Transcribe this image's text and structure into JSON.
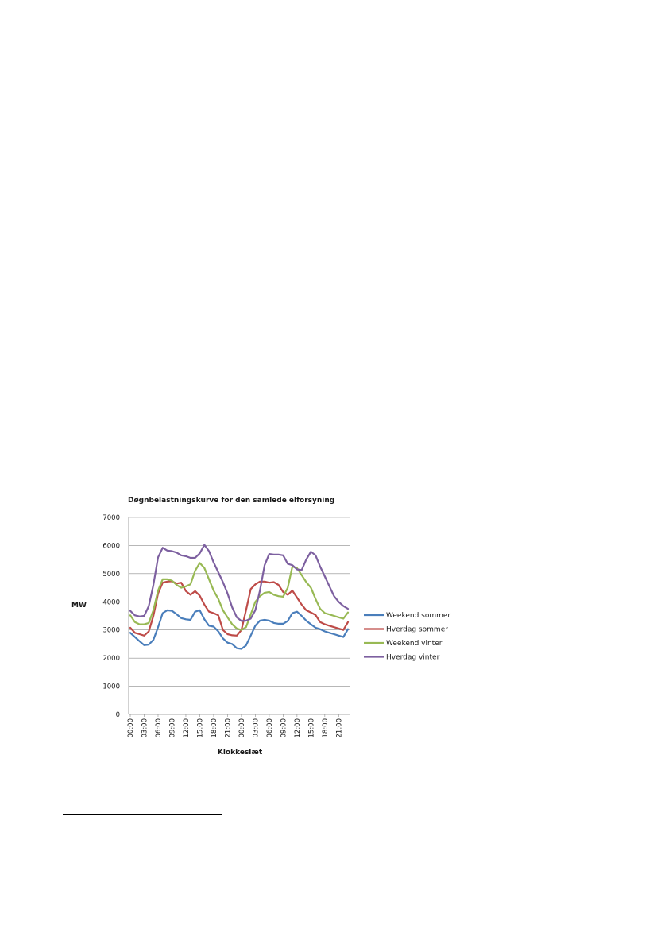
{
  "chart_data": {
    "type": "line",
    "title": "Døgnbelastningskurve for den samlede elforsyning",
    "xlabel": "Klokkeslæt",
    "ylabel": "MW",
    "ylim": [
      0,
      7000
    ],
    "yticks": [
      0,
      1000,
      2000,
      3000,
      4000,
      5000,
      6000,
      7000
    ],
    "grid": "horizontal",
    "legend_position": "right",
    "x": [
      "00:00",
      "01:00",
      "02:00",
      "03:00",
      "04:00",
      "05:00",
      "06:00",
      "07:00",
      "08:00",
      "09:00",
      "10:00",
      "11:00",
      "12:00",
      "13:00",
      "14:00",
      "15:00",
      "16:00",
      "17:00",
      "18:00",
      "19:00",
      "20:00",
      "21:00",
      "22:00",
      "23:00",
      "00:00",
      "01:00",
      "02:00",
      "03:00",
      "04:00",
      "05:00",
      "06:00",
      "07:00",
      "08:00",
      "09:00",
      "10:00",
      "11:00",
      "12:00",
      "13:00",
      "14:00",
      "15:00",
      "16:00",
      "17:00",
      "18:00",
      "19:00",
      "20:00",
      "21:00",
      "22:00",
      "23:00"
    ],
    "x_tick_labels": [
      "00:00",
      "03:00",
      "06:00",
      "09:00",
      "12:00",
      "15:00",
      "18:00",
      "21:00",
      "00:00",
      "03:00",
      "06:00",
      "09:00",
      "12:00",
      "15:00",
      "18:00",
      "21:00"
    ],
    "series": [
      {
        "name": "Weekend sommer",
        "color": "#4a7ebb",
        "values": [
          2900,
          2750,
          2600,
          2460,
          2480,
          2650,
          3100,
          3600,
          3700,
          3680,
          3560,
          3420,
          3380,
          3360,
          3650,
          3700,
          3380,
          3150,
          3120,
          2950,
          2700,
          2550,
          2500,
          2350,
          2330,
          2450,
          2800,
          3150,
          3330,
          3360,
          3330,
          3250,
          3220,
          3220,
          3320,
          3600,
          3650,
          3500,
          3330,
          3200,
          3080,
          3030,
          2950,
          2900,
          2850,
          2800,
          2750,
          3030
        ]
      },
      {
        "name": "Hverdag sommer",
        "color": "#be4b48",
        "values": [
          3080,
          2900,
          2850,
          2800,
          2950,
          3500,
          4300,
          4680,
          4720,
          4730,
          4650,
          4680,
          4380,
          4250,
          4380,
          4220,
          3900,
          3650,
          3600,
          3520,
          3000,
          2850,
          2810,
          2800,
          3000,
          3700,
          4450,
          4620,
          4720,
          4720,
          4680,
          4700,
          4600,
          4350,
          4250,
          4400,
          4150,
          3900,
          3700,
          3620,
          3530,
          3280,
          3200,
          3150,
          3100,
          3050,
          3000,
          3280
        ]
      },
      {
        "name": "Weekend vinter",
        "color": "#98b954",
        "values": [
          3520,
          3280,
          3200,
          3200,
          3250,
          3700,
          4400,
          4800,
          4800,
          4750,
          4600,
          4500,
          4550,
          4620,
          5100,
          5380,
          5200,
          4800,
          4400,
          4100,
          3700,
          3450,
          3200,
          3050,
          3000,
          3100,
          3550,
          4000,
          4200,
          4320,
          4350,
          4250,
          4200,
          4180,
          4500,
          5250,
          5200,
          4950,
          4700,
          4500,
          4100,
          3750,
          3600,
          3550,
          3500,
          3450,
          3400,
          3620
        ]
      },
      {
        "name": "Hverdag vinter",
        "color": "#7d60a0",
        "values": [
          3680,
          3520,
          3480,
          3500,
          3850,
          4600,
          5580,
          5920,
          5820,
          5800,
          5750,
          5650,
          5620,
          5560,
          5560,
          5720,
          6020,
          5800,
          5400,
          5050,
          4700,
          4300,
          3800,
          3450,
          3320,
          3330,
          3400,
          3700,
          4400,
          5300,
          5700,
          5680,
          5680,
          5650,
          5350,
          5300,
          5150,
          5130,
          5500,
          5780,
          5650,
          5250,
          4900,
          4550,
          4200,
          4000,
          3850,
          3750
        ]
      }
    ]
  }
}
